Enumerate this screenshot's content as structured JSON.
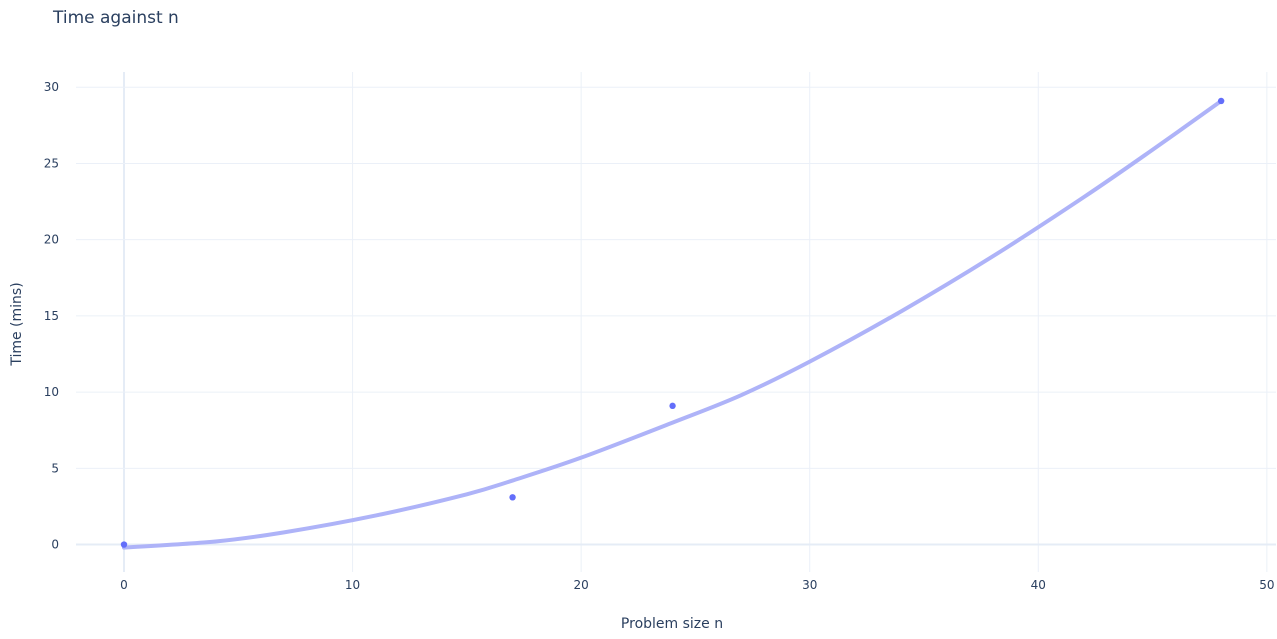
{
  "chart_data": {
    "type": "scatter",
    "title": "Time against n",
    "xlabel": "Problem size n",
    "ylabel": "Time (mins)",
    "xlim": [
      -2.1,
      50.4
    ],
    "ylim": [
      -1.8,
      31.0
    ],
    "xticks": [
      0,
      10,
      20,
      30,
      40,
      50
    ],
    "yticks": [
      0,
      5,
      10,
      15,
      20,
      25,
      30
    ],
    "grid": true,
    "colors": {
      "points": "#636efa",
      "fit": "#aeb3f8"
    },
    "series": [
      {
        "type": "scatter",
        "x": [
          0,
          17,
          24,
          48
        ],
        "y": [
          0,
          3.1,
          9.1,
          29.1
        ]
      },
      {
        "type": "line",
        "x": [
          0,
          4,
          7,
          11,
          15,
          17,
          20,
          24,
          27,
          30,
          34,
          38,
          42,
          45,
          48
        ],
        "y": [
          -0.2,
          0.2,
          0.8,
          1.9,
          3.3,
          4.2,
          5.7,
          8.0,
          9.8,
          12.0,
          15.3,
          18.9,
          22.8,
          25.9,
          29.1
        ]
      }
    ]
  }
}
